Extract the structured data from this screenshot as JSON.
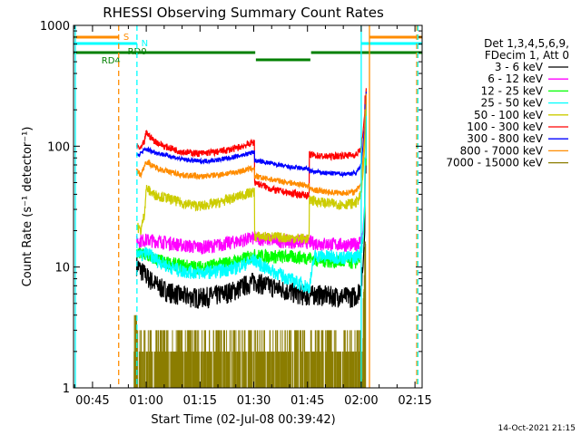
{
  "chart_data": {
    "type": "line",
    "title": "RHESSI Observing Summary Count Rates",
    "xlabel": "Start Time (02-Jul-08 00:39:42)",
    "ylabel": "Count Rate (s⁻¹ detector⁻¹)",
    "yscale": "log",
    "ylim": [
      1,
      1000
    ],
    "xlim_minutes": [
      39.7,
      137.0
    ],
    "y_tick_labels": [
      "1",
      "10",
      "100",
      "1000"
    ],
    "x_ticks": [
      {
        "m": 45,
        "label": "00:45"
      },
      {
        "m": 60,
        "label": "01:00"
      },
      {
        "m": 75,
        "label": "01:15"
      },
      {
        "m": 90,
        "label": "01:30"
      },
      {
        "m": 105,
        "label": "01:45"
      },
      {
        "m": 120,
        "label": "02:00"
      },
      {
        "m": 135,
        "label": "02:15"
      }
    ],
    "legend_header": [
      "Det 1,3,4,5,6,9,",
      "FDecim 1, Att 0"
    ],
    "series": [
      {
        "name": "3 - 6 keV",
        "color": "#000000",
        "points": [
          [
            57.3,
            10.5
          ],
          [
            58.5,
            9.5
          ],
          [
            60,
            8.5
          ],
          [
            62,
            7.5
          ],
          [
            65,
            6.5
          ],
          [
            70,
            5.8
          ],
          [
            75,
            5.6
          ],
          [
            80,
            5.9
          ],
          [
            85,
            6.5
          ],
          [
            88,
            7.2
          ],
          [
            90.2,
            7.7
          ],
          [
            93,
            7.2
          ],
          [
            96,
            6.8
          ],
          [
            100,
            6.3
          ],
          [
            103,
            6.0
          ],
          [
            105.5,
            5.8
          ],
          [
            107,
            6.0
          ],
          [
            112,
            5.8
          ],
          [
            117,
            5.7
          ],
          [
            118.5,
            5.8
          ],
          [
            120,
            7.0
          ],
          [
            120.5,
            10
          ],
          [
            121,
            20
          ],
          [
            121.3,
            60
          ],
          [
            121.5,
            240
          ]
        ]
      },
      {
        "name": "6 - 12 keV",
        "color": "#ff00ff",
        "points": [
          [
            57.3,
            16.5
          ],
          [
            60,
            16.8
          ],
          [
            65,
            16.2
          ],
          [
            70,
            15.2
          ],
          [
            75,
            14.6
          ],
          [
            80,
            15.2
          ],
          [
            85,
            16.3
          ],
          [
            88,
            17.0
          ],
          [
            90.2,
            17.5
          ],
          [
            95,
            16.8
          ],
          [
            100,
            16.3
          ],
          [
            105.5,
            16.2
          ],
          [
            107,
            15.8
          ],
          [
            112,
            15.5
          ],
          [
            117,
            15.3
          ],
          [
            118.5,
            15.5
          ],
          [
            120,
            16.5
          ],
          [
            120.5,
            20
          ],
          [
            121,
            35
          ],
          [
            121.3,
            80
          ],
          [
            121.5,
            250
          ]
        ]
      },
      {
        "name": "12 - 25 keV",
        "color": "#00ff00",
        "points": [
          [
            57.3,
            13
          ],
          [
            60,
            12.5
          ],
          [
            65,
            11.0
          ],
          [
            70,
            10.3
          ],
          [
            75,
            10.0
          ],
          [
            80,
            10.5
          ],
          [
            85,
            11.2
          ],
          [
            88,
            12.0
          ],
          [
            90.2,
            12.5
          ],
          [
            95,
            12.3
          ],
          [
            100,
            12.2
          ],
          [
            105.5,
            12.0
          ],
          [
            107,
            11.5
          ],
          [
            112,
            11.2
          ],
          [
            117,
            11.0
          ],
          [
            118.5,
            11.0
          ],
          [
            120,
            13
          ],
          [
            120.5,
            17
          ],
          [
            121,
            30
          ],
          [
            121.3,
            70
          ],
          [
            121.5,
            230
          ]
        ]
      },
      {
        "name": "25 - 50 keV",
        "color": "#00ffff",
        "points": [
          [
            57.3,
            13.8
          ],
          [
            58.5,
            12.3
          ],
          [
            60,
            13.2
          ],
          [
            63,
            11.5
          ],
          [
            66,
            10.2
          ],
          [
            70,
            9.3
          ],
          [
            75,
            9.0
          ],
          [
            80,
            9.3
          ],
          [
            85,
            9.9
          ],
          [
            88,
            10.8
          ],
          [
            90.2,
            11.5
          ],
          [
            93,
            10.0
          ],
          [
            97,
            8.8
          ],
          [
            100,
            8.0
          ],
          [
            103,
            7.3
          ],
          [
            105.5,
            6.8
          ],
          [
            107,
            12.5
          ],
          [
            112,
            12.2
          ],
          [
            117,
            12.0
          ],
          [
            118.5,
            12.2
          ],
          [
            120,
            13.5
          ],
          [
            120.5,
            18
          ],
          [
            121,
            35
          ],
          [
            121.3,
            80
          ],
          [
            121.5,
            240
          ]
        ]
      },
      {
        "name": "50 - 100 keV",
        "color": "#cccc00",
        "points": [
          [
            57.3,
            22
          ],
          [
            58.5,
            20
          ],
          [
            59.5,
            28
          ],
          [
            60,
            45
          ],
          [
            62,
            40
          ],
          [
            65,
            38
          ],
          [
            70,
            34
          ],
          [
            75,
            32
          ],
          [
            80,
            34
          ],
          [
            85,
            38
          ],
          [
            88,
            40.5
          ],
          [
            90.2,
            42
          ],
          [
            90.6,
            18
          ],
          [
            95,
            17.8
          ],
          [
            100,
            17.5
          ],
          [
            105.5,
            17.2
          ],
          [
            105.9,
            36
          ],
          [
            110,
            34
          ],
          [
            115,
            33
          ],
          [
            118.5,
            34
          ],
          [
            120,
            40
          ],
          [
            120.5,
            60
          ],
          [
            121,
            100
          ],
          [
            121.3,
            180
          ],
          [
            121.5,
            290
          ]
        ]
      },
      {
        "name": "100 - 300 keV",
        "color": "#ff0000",
        "points": [
          [
            57.3,
            100
          ],
          [
            58.5,
            95
          ],
          [
            59.5,
            110
          ],
          [
            60,
            130
          ],
          [
            62,
            112
          ],
          [
            65,
            100
          ],
          [
            70,
            90
          ],
          [
            75,
            87
          ],
          [
            80,
            90
          ],
          [
            85,
            96
          ],
          [
            88,
            103
          ],
          [
            90.2,
            108
          ],
          [
            90.6,
            50
          ],
          [
            95,
            44
          ],
          [
            100,
            41
          ],
          [
            105.5,
            39
          ],
          [
            105.9,
            85
          ],
          [
            110,
            82
          ],
          [
            115,
            84
          ],
          [
            118.5,
            85
          ],
          [
            120,
            95
          ],
          [
            120.5,
            130
          ],
          [
            121,
            190
          ],
          [
            121.3,
            260
          ],
          [
            121.5,
            300
          ]
        ]
      },
      {
        "name": "300 - 800 keV",
        "color": "#0000ff",
        "points": [
          [
            57.3,
            83
          ],
          [
            60,
            95
          ],
          [
            62,
            90
          ],
          [
            65,
            85
          ],
          [
            70,
            78
          ],
          [
            75,
            75
          ],
          [
            80,
            77
          ],
          [
            85,
            82
          ],
          [
            88,
            86
          ],
          [
            90.2,
            90
          ],
          [
            90.6,
            76
          ],
          [
            95,
            72
          ],
          [
            100,
            67
          ],
          [
            105.5,
            65
          ],
          [
            105.9,
            62
          ],
          [
            110,
            60
          ],
          [
            115,
            59
          ],
          [
            118.5,
            60
          ],
          [
            120,
            70
          ],
          [
            120.5,
            100
          ],
          [
            121,
            150
          ],
          [
            121.3,
            220
          ],
          [
            121.5,
            280
          ]
        ]
      },
      {
        "name": "800 - 7000 keV",
        "color": "#ff8c00",
        "points": [
          [
            57.3,
            63
          ],
          [
            58.5,
            58
          ],
          [
            60,
            75
          ],
          [
            62,
            68
          ],
          [
            65,
            63
          ],
          [
            70,
            58
          ],
          [
            75,
            56
          ],
          [
            80,
            58
          ],
          [
            85,
            61
          ],
          [
            88,
            64
          ],
          [
            90.2,
            66
          ],
          [
            90.6,
            56
          ],
          [
            95,
            53
          ],
          [
            100,
            50
          ],
          [
            105.5,
            47
          ],
          [
            105.9,
            44
          ],
          [
            110,
            42
          ],
          [
            115,
            41
          ],
          [
            118.5,
            42
          ],
          [
            120,
            50
          ],
          [
            120.5,
            80
          ],
          [
            121,
            130
          ],
          [
            121.3,
            200
          ],
          [
            121.5,
            270
          ]
        ]
      },
      {
        "name": "7000 - 15000 keV",
        "color": "#8b7d00",
        "points": []
      }
    ],
    "flag_bars": {
      "S": {
        "label": "S",
        "color": "#ff8c00",
        "segments": [
          [
            39.7,
            52.3
          ],
          [
            122.3,
            137
          ]
        ]
      },
      "N": {
        "label": "N",
        "color": "#00ffff",
        "segments": [
          [
            39.7,
            57.4
          ],
          [
            120,
            137
          ]
        ]
      },
      "RD4": {
        "label": "RD4",
        "color": "#008000",
        "segments": [
          [
            39.7,
            90.4
          ]
        ]
      },
      "RD0": {
        "label": "RD0",
        "color": "#008000",
        "segments": [
          [
            57.5,
            90.4
          ],
          [
            106,
            137
          ]
        ]
      },
      "RD_low": {
        "color": "#008000",
        "segments": [
          [
            90.6,
            105.8
          ]
        ]
      }
    },
    "vertical_markers": [
      {
        "m": 52.3,
        "color": "#ff8c00",
        "style": "dashed"
      },
      {
        "m": 57.4,
        "color": "#00ffff",
        "style": "dashed"
      },
      {
        "m": 120.0,
        "color": "#00ffff",
        "style": "solid"
      },
      {
        "m": 122.3,
        "color": "#ff8c00",
        "style": "solid"
      },
      {
        "m": 135.5,
        "color": "#ff8c00",
        "style": "dashed"
      },
      {
        "m": 135.8,
        "color": "#00ffff",
        "style": "dashed"
      },
      {
        "m": 40.2,
        "color": "#00ffff",
        "style": "solid"
      }
    ],
    "footer_date": "14-Oct-2021 21:15"
  }
}
